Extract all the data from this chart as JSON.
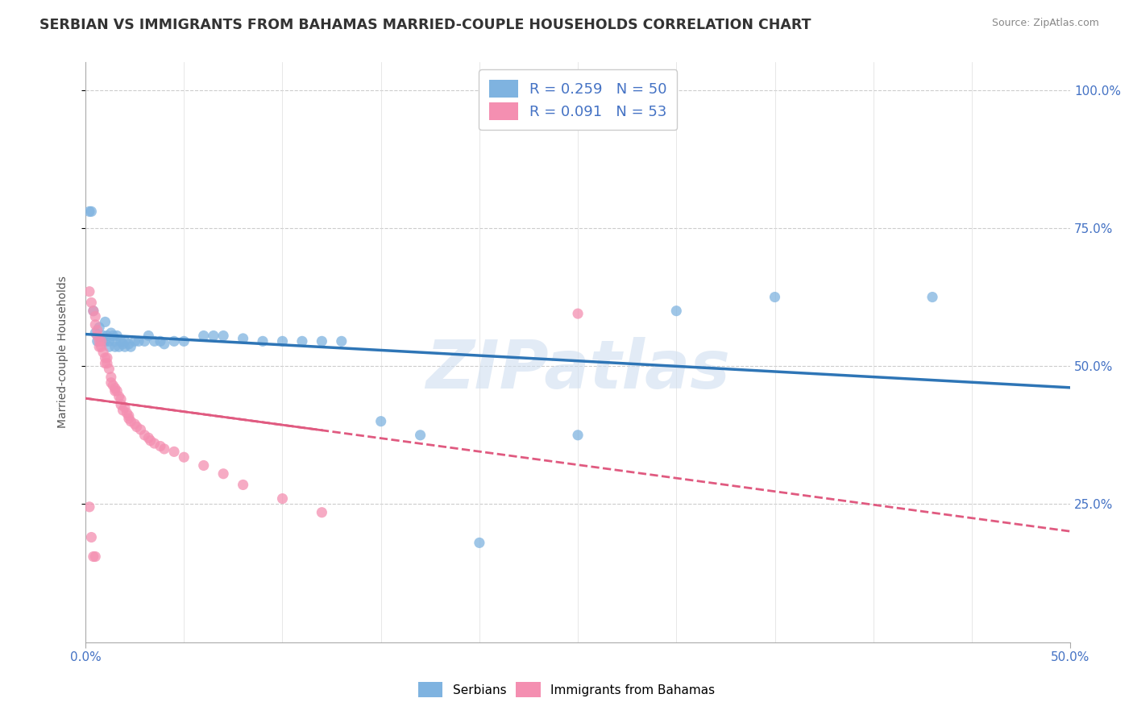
{
  "title": "SERBIAN VS IMMIGRANTS FROM BAHAMAS MARRIED-COUPLE HOUSEHOLDS CORRELATION CHART",
  "source": "Source: ZipAtlas.com",
  "ylabel_label": "Married-couple Households",
  "xlim": [
    0.0,
    0.5
  ],
  "ylim": [
    0.0,
    1.05
  ],
  "ytick_labels": [
    "25.0%",
    "50.0%",
    "75.0%",
    "100.0%"
  ],
  "ytick_values": [
    0.25,
    0.5,
    0.75,
    1.0
  ],
  "serbian_color": "#7fb3e0",
  "bahamas_color": "#f48fb1",
  "serbian_line_color": "#2e75b6",
  "bahamas_line_color": "#e05a80",
  "background_color": "#ffffff",
  "grid_color": "#cccccc",
  "watermark_text": "ZIPatlas",
  "R_serbian": 0.259,
  "N_serbian": 50,
  "R_bahamas": 0.091,
  "N_bahamas": 53,
  "title_fontsize": 12.5,
  "axis_label_fontsize": 10,
  "tick_fontsize": 11,
  "legend_fontsize": 13,
  "serbian_scatter": [
    [
      0.002,
      0.78
    ],
    [
      0.003,
      0.78
    ],
    [
      0.004,
      0.6
    ],
    [
      0.005,
      0.56
    ],
    [
      0.006,
      0.545
    ],
    [
      0.007,
      0.57
    ],
    [
      0.008,
      0.545
    ],
    [
      0.009,
      0.555
    ],
    [
      0.01,
      0.58
    ],
    [
      0.01,
      0.545
    ],
    [
      0.011,
      0.555
    ],
    [
      0.012,
      0.545
    ],
    [
      0.012,
      0.535
    ],
    [
      0.013,
      0.56
    ],
    [
      0.014,
      0.555
    ],
    [
      0.015,
      0.535
    ],
    [
      0.015,
      0.545
    ],
    [
      0.016,
      0.555
    ],
    [
      0.017,
      0.535
    ],
    [
      0.018,
      0.545
    ],
    [
      0.019,
      0.54
    ],
    [
      0.02,
      0.535
    ],
    [
      0.02,
      0.545
    ],
    [
      0.022,
      0.54
    ],
    [
      0.023,
      0.535
    ],
    [
      0.025,
      0.545
    ],
    [
      0.027,
      0.545
    ],
    [
      0.03,
      0.545
    ],
    [
      0.032,
      0.555
    ],
    [
      0.035,
      0.545
    ],
    [
      0.038,
      0.545
    ],
    [
      0.04,
      0.54
    ],
    [
      0.045,
      0.545
    ],
    [
      0.05,
      0.545
    ],
    [
      0.06,
      0.555
    ],
    [
      0.065,
      0.555
    ],
    [
      0.07,
      0.555
    ],
    [
      0.08,
      0.55
    ],
    [
      0.09,
      0.545
    ],
    [
      0.1,
      0.545
    ],
    [
      0.11,
      0.545
    ],
    [
      0.12,
      0.545
    ],
    [
      0.13,
      0.545
    ],
    [
      0.15,
      0.4
    ],
    [
      0.17,
      0.375
    ],
    [
      0.2,
      0.18
    ],
    [
      0.25,
      0.375
    ],
    [
      0.3,
      0.6
    ],
    [
      0.35,
      0.625
    ],
    [
      0.43,
      0.625
    ]
  ],
  "bahamas_scatter": [
    [
      0.002,
      0.635
    ],
    [
      0.003,
      0.615
    ],
    [
      0.004,
      0.6
    ],
    [
      0.005,
      0.59
    ],
    [
      0.005,
      0.575
    ],
    [
      0.006,
      0.565
    ],
    [
      0.006,
      0.555
    ],
    [
      0.007,
      0.545
    ],
    [
      0.007,
      0.535
    ],
    [
      0.008,
      0.545
    ],
    [
      0.008,
      0.535
    ],
    [
      0.009,
      0.525
    ],
    [
      0.01,
      0.515
    ],
    [
      0.01,
      0.505
    ],
    [
      0.011,
      0.515
    ],
    [
      0.011,
      0.505
    ],
    [
      0.012,
      0.495
    ],
    [
      0.013,
      0.48
    ],
    [
      0.013,
      0.47
    ],
    [
      0.014,
      0.465
    ],
    [
      0.015,
      0.46
    ],
    [
      0.015,
      0.455
    ],
    [
      0.016,
      0.455
    ],
    [
      0.017,
      0.445
    ],
    [
      0.018,
      0.44
    ],
    [
      0.018,
      0.43
    ],
    [
      0.019,
      0.42
    ],
    [
      0.02,
      0.425
    ],
    [
      0.021,
      0.415
    ],
    [
      0.022,
      0.41
    ],
    [
      0.022,
      0.405
    ],
    [
      0.023,
      0.4
    ],
    [
      0.025,
      0.395
    ],
    [
      0.026,
      0.39
    ],
    [
      0.028,
      0.385
    ],
    [
      0.03,
      0.375
    ],
    [
      0.032,
      0.37
    ],
    [
      0.033,
      0.365
    ],
    [
      0.035,
      0.36
    ],
    [
      0.038,
      0.355
    ],
    [
      0.04,
      0.35
    ],
    [
      0.045,
      0.345
    ],
    [
      0.05,
      0.335
    ],
    [
      0.06,
      0.32
    ],
    [
      0.07,
      0.305
    ],
    [
      0.08,
      0.285
    ],
    [
      0.1,
      0.26
    ],
    [
      0.12,
      0.235
    ],
    [
      0.002,
      0.245
    ],
    [
      0.003,
      0.19
    ],
    [
      0.004,
      0.155
    ],
    [
      0.005,
      0.155
    ],
    [
      0.25,
      0.595
    ]
  ]
}
